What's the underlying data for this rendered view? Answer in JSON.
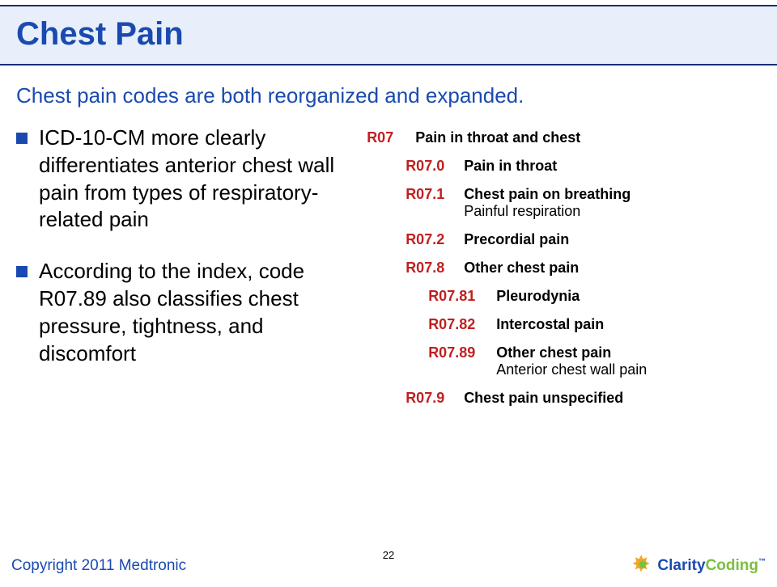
{
  "header": {
    "title": "Chest Pain"
  },
  "subtitle": "Chest pain codes are both reorganized and expanded.",
  "bullets": [
    "ICD-10-CM more clearly differentiates anterior chest wall pain from types of respiratory-related pain",
    "According to the index, code R07.89 also classifies chest pressure, tightness, and discomfort"
  ],
  "codes": {
    "root": {
      "code": "R07",
      "desc": "Pain in throat and chest"
    },
    "r070": {
      "code": "R07.0",
      "desc": "Pain in throat"
    },
    "r071": {
      "code": "R07.1",
      "desc": "Chest pain on breathing",
      "sub": "Painful respiration"
    },
    "r072": {
      "code": "R07.2",
      "desc": "Precordial pain"
    },
    "r078": {
      "code": "R07.8",
      "desc": "Other chest pain"
    },
    "r0781": {
      "code": "R07.81",
      "desc": "Pleurodynia"
    },
    "r0782": {
      "code": "R07.82",
      "desc": "Intercostal pain"
    },
    "r0789": {
      "code": "R07.89",
      "desc": "Other chest pain",
      "sub": "Anterior chest wall pain"
    },
    "r079": {
      "code": "R07.9",
      "desc": "Chest pain unspecified"
    }
  },
  "footer": {
    "copyright": "Copyright 2011 Medtronic",
    "page": "22",
    "logo_a": "Clarity",
    "logo_b": "Coding"
  },
  "colors": {
    "accent_blue": "#1a4ab0",
    "header_bg": "#e8effa",
    "border": "#1a2f7a",
    "code_red": "#c02020",
    "logo_green": "#7bbf3f",
    "logo_orange": "#f5a623"
  }
}
